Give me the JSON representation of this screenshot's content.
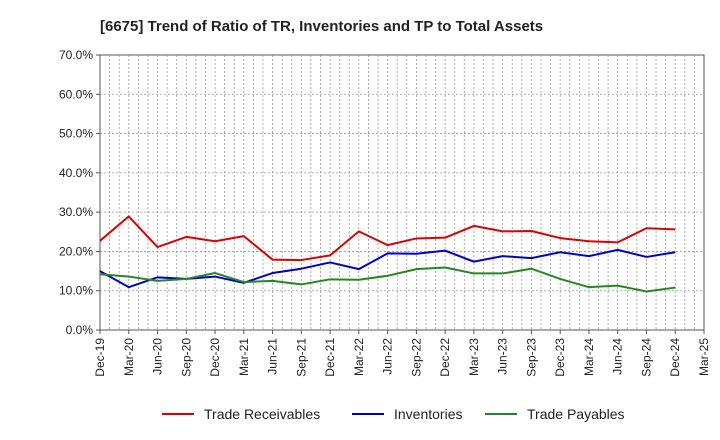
{
  "chart_data": {
    "type": "line",
    "title": "[6675]  Trend of Ratio of TR, Inventories and TP to Total Assets",
    "xlabel": "",
    "ylabel": "",
    "ylim": [
      0,
      70
    ],
    "y_ticks": [
      "0.0%",
      "10.0%",
      "20.0%",
      "30.0%",
      "40.0%",
      "50.0%",
      "60.0%",
      "70.0%"
    ],
    "x_tick_labels": [
      "Dec-19",
      "Mar-20",
      "Jun-20",
      "Sep-20",
      "Dec-20",
      "Mar-21",
      "Jun-21",
      "Sep-21",
      "Dec-21",
      "Mar-22",
      "Jun-22",
      "Sep-22",
      "Dec-22",
      "Mar-23",
      "Jun-23",
      "Sep-23",
      "Dec-23",
      "Mar-24",
      "Jun-24",
      "Sep-24",
      "Dec-24",
      "Mar-25"
    ],
    "x": [
      "Dec-19",
      "Mar-20",
      "Jun-20",
      "Sep-20",
      "Dec-20",
      "Mar-21",
      "Jun-21",
      "Sep-21",
      "Dec-21",
      "Mar-22",
      "Jun-22",
      "Sep-22",
      "Dec-22",
      "Mar-23",
      "Jun-23",
      "Sep-23",
      "Dec-23",
      "Mar-24",
      "Jun-24",
      "Sep-24",
      "Dec-24"
    ],
    "grid": true,
    "legend_position": "bottom",
    "series": [
      {
        "name": "Trade Receivables",
        "color": "#dd0000",
        "values": [
          22.7,
          28.9,
          21.1,
          23.7,
          22.6,
          23.9,
          17.9,
          17.8,
          19.0,
          25.1,
          21.6,
          23.3,
          23.5,
          26.5,
          25.1,
          25.2,
          23.4,
          22.6,
          22.3,
          25.9,
          25.6
        ]
      },
      {
        "name": "Inventories",
        "color": "#0000cc",
        "values": [
          15.0,
          10.9,
          13.4,
          13.0,
          13.6,
          12.0,
          14.5,
          15.6,
          17.2,
          15.5,
          19.5,
          19.4,
          20.2,
          17.4,
          18.8,
          18.3,
          19.8,
          18.8,
          20.4,
          18.6,
          19.8
        ]
      },
      {
        "name": "Trade Payables",
        "color": "#228822",
        "values": [
          14.2,
          13.6,
          12.5,
          13.0,
          14.5,
          12.2,
          12.5,
          11.6,
          12.9,
          12.8,
          13.8,
          15.5,
          15.9,
          14.4,
          14.4,
          15.6,
          13.0,
          10.9,
          11.3,
          9.8,
          10.8
        ]
      }
    ]
  }
}
